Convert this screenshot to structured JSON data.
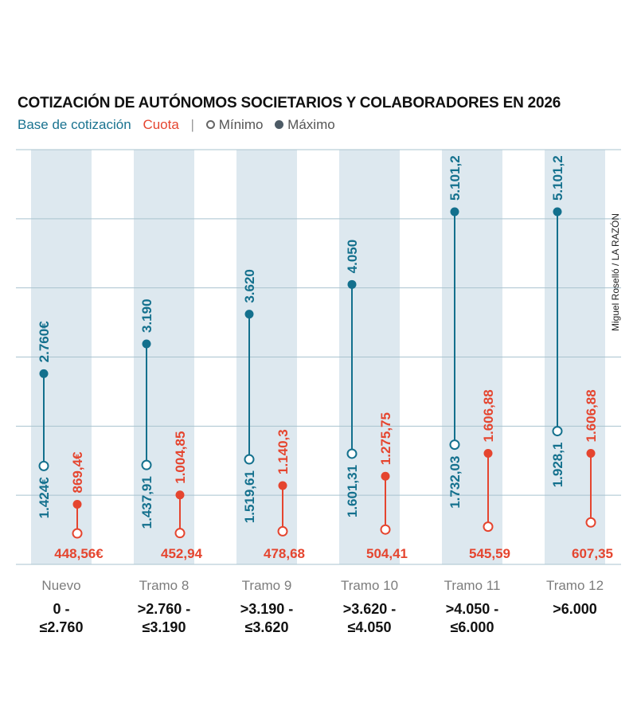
{
  "chart_data": {
    "type": "dumbbell",
    "title": "COTIZACIÓN DE AUTÓNOMOS SOCIETARIOS Y COLABORADORES EN 2026",
    "legend": {
      "base": "Base de cotización",
      "cuota": "Cuota",
      "separator": "|",
      "min": "Mínimo",
      "max": "Máximo"
    },
    "credit": "Miguel Roselló / LA RAZÓN",
    "ylim": [
      0,
      6000
    ],
    "grid": true,
    "colors": {
      "base": "#13708d",
      "cuota": "#e5452f",
      "band": "#dde8ef",
      "grid": "#a9c3cf"
    },
    "categories": [
      {
        "name": "Nuevo",
        "range": [
          "0 -",
          "≤2.760"
        ]
      },
      {
        "name": "Tramo 8",
        "range": [
          ">2.760 -",
          "≤3.190"
        ]
      },
      {
        "name": "Tramo 9",
        "range": [
          ">3.190 -",
          "≤3.620"
        ]
      },
      {
        "name": "Tramo 10",
        "range": [
          ">3.620 -",
          "≤4.050"
        ]
      },
      {
        "name": "Tramo 11",
        "range": [
          ">4.050 -",
          "≤6.000"
        ]
      },
      {
        "name": "Tramo 12",
        "range": [
          ">6.000"
        ]
      }
    ],
    "series": [
      {
        "name": "Base de cotización",
        "min": [
          1424,
          1437.91,
          1519.61,
          1601.31,
          1732.03,
          1928.1
        ],
        "max": [
          2760,
          3190,
          3620,
          4050,
          5101.2,
          5101.2
        ],
        "min_labels": [
          "1.424€",
          "1.437,91",
          "1.519,61",
          "1.601,31",
          "1.732,03",
          "1.928,1"
        ],
        "max_labels": [
          "2.760€",
          "3.190",
          "3.620",
          "4.050",
          "5.101,2",
          "5.101,2"
        ]
      },
      {
        "name": "Cuota",
        "min": [
          448.56,
          452.94,
          478.68,
          504.41,
          545.59,
          607.35
        ],
        "max": [
          869.4,
          1004.85,
          1140.3,
          1275.75,
          1606.88,
          1606.88
        ],
        "min_labels": [
          "448,56€",
          "452,94",
          "478,68",
          "504,41",
          "545,59",
          "607,35"
        ],
        "max_labels": [
          "869,4€",
          "1.004,85",
          "1.140,3",
          "1.275,75",
          "1.606,88",
          "1.606,88"
        ]
      }
    ]
  }
}
